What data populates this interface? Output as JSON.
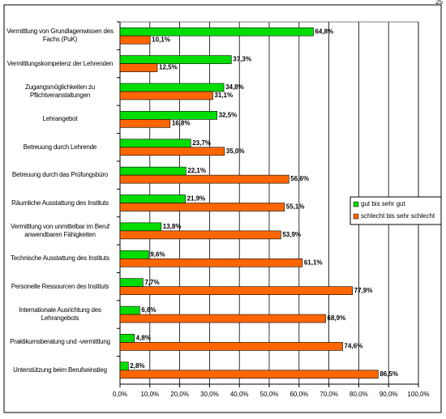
{
  "page_number": "25",
  "chart_data": {
    "type": "bar",
    "orientation": "horizontal",
    "categories": [
      "Vermittlung von Grundlagenwissen des Fachs (PuK)",
      "Vermittlungskompetenz der Lehrenden",
      "Zugangsmöglichkeiten zu Pflichtveranstaltungen",
      "Lehrangebot",
      "Betreuung durch Lehrende",
      "Betreuung durch das Prüfungsbüro",
      "Räumliche Ausstattung des Instituts",
      "Vermittlung von unmittelbar im Beruf anwendbaren Fähigkeiten",
      "Technische Ausstattung des Instituts",
      "Personelle Ressourcen des Instituts",
      "Internationale Ausrichtung des Lehrangebots",
      "Praktikumsberatung und -vermittlung",
      "Unterstützung beim Berufseinstieg"
    ],
    "series": [
      {
        "name": "gut bis sehr gut",
        "color": "#00dd00",
        "values": [
          64.8,
          37.3,
          34.8,
          32.5,
          23.7,
          22.1,
          21.9,
          13.8,
          9.6,
          7.7,
          6.6,
          4.8,
          2.8
        ],
        "value_labels": [
          "64,8%",
          "37,3%",
          "34,8%",
          "32,5%",
          "23,7%",
          "22,1%",
          "21,9%",
          "13,8%",
          "9,6%",
          "7,7%",
          "6,6%",
          "4,8%",
          "2,8%"
        ]
      },
      {
        "name": "schlecht bis sehr schlecht",
        "color": "#ff6600",
        "values": [
          10.1,
          12.5,
          31.1,
          16.8,
          35.0,
          56.6,
          55.1,
          53.9,
          61.1,
          77.9,
          68.9,
          74.6,
          86.5
        ],
        "value_labels": [
          "10,1%",
          "12,5%",
          "31,1%",
          "16,8%",
          "35,0%",
          "56,6%",
          "55,1%",
          "53,9%",
          "61,1%",
          "77,9%",
          "68,9%",
          "74,6%",
          "86,5%"
        ]
      }
    ],
    "xlim": [
      0,
      100
    ],
    "xticks": [
      {
        "value": 0,
        "label": "0,0%"
      },
      {
        "value": 10,
        "label": "10,0%"
      },
      {
        "value": 20,
        "label": "20,0%"
      },
      {
        "value": 30,
        "label": "30,0%"
      },
      {
        "value": 40,
        "label": "40,0%"
      },
      {
        "value": 50,
        "label": "50,0%"
      },
      {
        "value": 60,
        "label": "60,0%"
      },
      {
        "value": 70,
        "label": "70,0%"
      },
      {
        "value": 80,
        "label": "80,0%"
      },
      {
        "value": 90,
        "label": "90,0%"
      },
      {
        "value": 100,
        "label": "100,0%"
      }
    ],
    "grid": true,
    "legend": "right"
  }
}
